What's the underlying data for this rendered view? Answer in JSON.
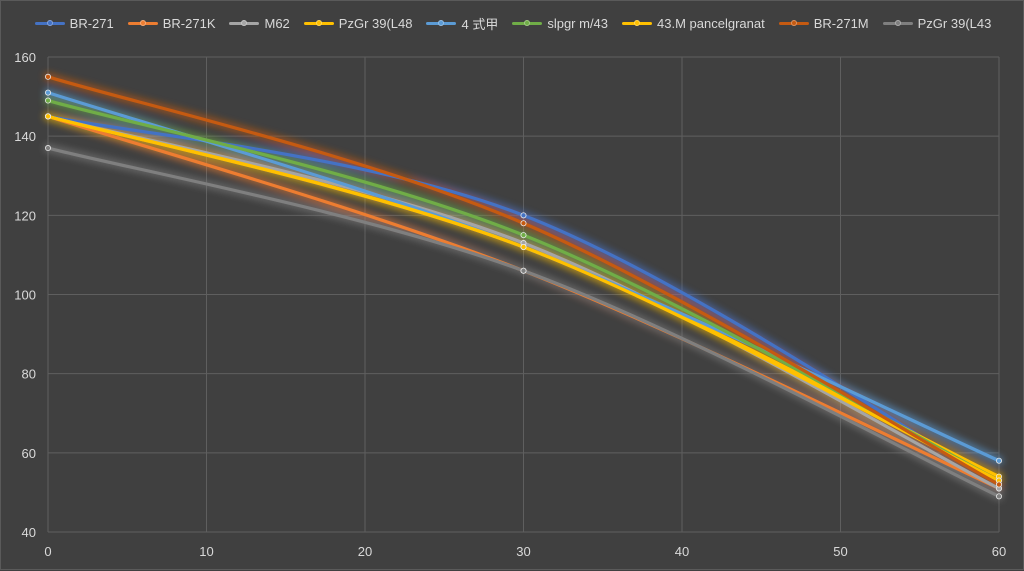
{
  "chart_data": {
    "type": "line",
    "title": "",
    "xlabel": "",
    "ylabel": "",
    "x": [
      0,
      30,
      60
    ],
    "xlim": [
      0,
      60
    ],
    "ylim": [
      40,
      160
    ],
    "xticks": [
      0,
      10,
      20,
      30,
      40,
      50,
      60
    ],
    "yticks": [
      40,
      60,
      80,
      100,
      120,
      140,
      160
    ],
    "grid": true,
    "smoothed": true,
    "legend_position": "top",
    "series": [
      {
        "name": "BR-271",
        "color": "#4472C4",
        "values": [
          145,
          120,
          52
        ]
      },
      {
        "name": "BR-271K",
        "color": "#ED7D31",
        "values": [
          145,
          106,
          51
        ]
      },
      {
        "name": "M62",
        "color": "#A5A5A5",
        "values": [
          145,
          113,
          51
        ]
      },
      {
        "name": "PzGr 39(L48",
        "color": "#FFC000",
        "values": [
          145,
          112,
          54
        ]
      },
      {
        "name": "4 式甲",
        "color": "#5B9BD5",
        "values": [
          151,
          112,
          58
        ]
      },
      {
        "name": "slpgr m/43",
        "color": "#70AD47",
        "values": [
          149,
          115,
          53
        ]
      },
      {
        "name": "43.M pancelgranat",
        "color": "#FFC000",
        "values": [
          145,
          112,
          53
        ]
      },
      {
        "name": "BR-271M",
        "color": "#C55A11",
        "values": [
          155,
          118,
          52
        ]
      },
      {
        "name": "PzGr 39(L43",
        "color": "#7F7F7F",
        "values": [
          137,
          106,
          49
        ]
      }
    ]
  }
}
